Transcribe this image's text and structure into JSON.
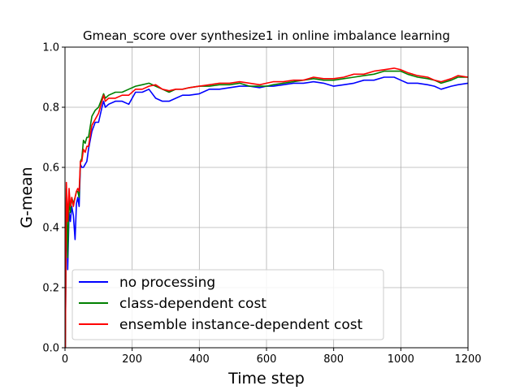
{
  "chart_data": {
    "type": "line",
    "title": "Gmean_score over synthesize1 in online imbalance learning",
    "xlabel": "Time step",
    "ylabel": "G-mean",
    "xlim": [
      0,
      1200
    ],
    "ylim": [
      0,
      1.0
    ],
    "xticks": [
      0,
      200,
      400,
      600,
      800,
      1000,
      1200
    ],
    "yticks": [
      0.0,
      0.2,
      0.4,
      0.6,
      0.8,
      1.0
    ],
    "xtick_labels": [
      "0",
      "200",
      "400",
      "600",
      "800",
      "1000",
      "1200"
    ],
    "ytick_labels": [
      "0.0",
      "0.2",
      "0.4",
      "0.6",
      "0.8",
      "1.0"
    ],
    "grid": true,
    "legend_position": "lower-left",
    "series": [
      {
        "name": "no processing",
        "color": "#0000ff",
        "x": [
          1,
          4,
          8,
          12,
          16,
          20,
          25,
          30,
          34,
          38,
          42,
          46,
          50,
          55,
          60,
          65,
          70,
          80,
          90,
          100,
          110,
          115,
          120,
          130,
          150,
          170,
          190,
          210,
          230,
          250,
          270,
          290,
          310,
          330,
          350,
          370,
          400,
          430,
          460,
          490,
          520,
          550,
          580,
          600,
          620,
          650,
          680,
          710,
          740,
          770,
          800,
          830,
          860,
          890,
          920,
          950,
          980,
          1000,
          1020,
          1050,
          1080,
          1100,
          1120,
          1150,
          1170,
          1200
        ],
        "y": [
          0.0,
          0.5,
          0.26,
          0.45,
          0.42,
          0.47,
          0.44,
          0.36,
          0.48,
          0.5,
          0.47,
          0.61,
          0.6,
          0.6,
          0.61,
          0.62,
          0.66,
          0.72,
          0.75,
          0.75,
          0.8,
          0.82,
          0.8,
          0.81,
          0.82,
          0.82,
          0.81,
          0.85,
          0.85,
          0.86,
          0.83,
          0.82,
          0.82,
          0.83,
          0.84,
          0.84,
          0.845,
          0.86,
          0.86,
          0.865,
          0.87,
          0.87,
          0.865,
          0.87,
          0.87,
          0.875,
          0.88,
          0.88,
          0.885,
          0.88,
          0.87,
          0.875,
          0.88,
          0.89,
          0.89,
          0.9,
          0.9,
          0.89,
          0.88,
          0.88,
          0.875,
          0.87,
          0.86,
          0.87,
          0.875,
          0.88
        ]
      },
      {
        "name": "class-dependent cost",
        "color": "#008000",
        "x": [
          1,
          4,
          8,
          12,
          16,
          20,
          25,
          30,
          34,
          38,
          42,
          46,
          50,
          55,
          60,
          65,
          70,
          80,
          90,
          100,
          110,
          115,
          120,
          130,
          150,
          170,
          190,
          210,
          230,
          250,
          270,
          290,
          310,
          330,
          350,
          370,
          400,
          430,
          460,
          490,
          520,
          550,
          580,
          600,
          620,
          650,
          680,
          710,
          740,
          770,
          800,
          830,
          860,
          890,
          920,
          950,
          980,
          1000,
          1020,
          1050,
          1080,
          1100,
          1120,
          1150,
          1170,
          1200
        ],
        "y": [
          0.0,
          0.53,
          0.3,
          0.5,
          0.45,
          0.5,
          0.48,
          0.5,
          0.52,
          0.52,
          0.5,
          0.62,
          0.63,
          0.69,
          0.68,
          0.7,
          0.7,
          0.77,
          0.79,
          0.8,
          0.83,
          0.845,
          0.83,
          0.84,
          0.85,
          0.85,
          0.86,
          0.87,
          0.875,
          0.88,
          0.87,
          0.86,
          0.85,
          0.86,
          0.86,
          0.865,
          0.87,
          0.87,
          0.875,
          0.875,
          0.88,
          0.87,
          0.87,
          0.87,
          0.875,
          0.88,
          0.885,
          0.89,
          0.895,
          0.89,
          0.89,
          0.895,
          0.9,
          0.905,
          0.91,
          0.92,
          0.92,
          0.92,
          0.91,
          0.9,
          0.895,
          0.89,
          0.88,
          0.89,
          0.9,
          0.9
        ]
      },
      {
        "name": "ensemble instance-dependent cost",
        "color": "#ff0000",
        "x": [
          1,
          4,
          8,
          12,
          16,
          20,
          25,
          30,
          34,
          38,
          42,
          46,
          50,
          55,
          60,
          65,
          70,
          80,
          90,
          100,
          110,
          115,
          120,
          130,
          150,
          170,
          190,
          210,
          230,
          250,
          270,
          290,
          310,
          330,
          350,
          370,
          400,
          430,
          460,
          490,
          520,
          550,
          580,
          600,
          620,
          650,
          680,
          710,
          740,
          770,
          800,
          830,
          860,
          890,
          920,
          950,
          980,
          1000,
          1020,
          1050,
          1080,
          1100,
          1120,
          1150,
          1170,
          1200
        ],
        "y": [
          0.0,
          0.55,
          0.42,
          0.53,
          0.47,
          0.5,
          0.47,
          0.5,
          0.52,
          0.53,
          0.52,
          0.62,
          0.62,
          0.66,
          0.65,
          0.67,
          0.67,
          0.74,
          0.76,
          0.78,
          0.82,
          0.84,
          0.82,
          0.83,
          0.83,
          0.84,
          0.84,
          0.86,
          0.86,
          0.87,
          0.875,
          0.86,
          0.855,
          0.86,
          0.86,
          0.865,
          0.87,
          0.875,
          0.88,
          0.88,
          0.885,
          0.88,
          0.875,
          0.88,
          0.885,
          0.885,
          0.89,
          0.89,
          0.9,
          0.895,
          0.895,
          0.9,
          0.91,
          0.91,
          0.92,
          0.925,
          0.93,
          0.925,
          0.915,
          0.905,
          0.9,
          0.89,
          0.885,
          0.895,
          0.905,
          0.9
        ]
      }
    ]
  }
}
